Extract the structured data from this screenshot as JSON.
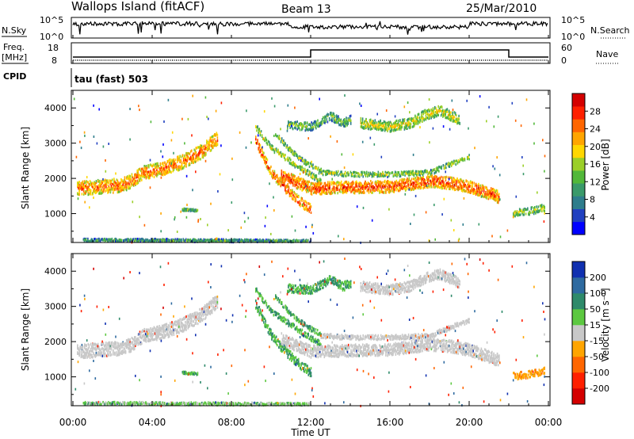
{
  "header": {
    "station": "Wallops Island (fitACF)",
    "beam": "Beam 13",
    "date": "25/Mar/2010"
  },
  "strip_panels": {
    "nsky": {
      "label": "N.Sky",
      "ticks": [
        "10^5",
        "10^0"
      ],
      "right_label": "N.Search",
      "right_ticks": [
        "10^5",
        "10^0"
      ]
    },
    "freq": {
      "label_top": "Freq.",
      "label_bottom": "[MHz]",
      "ticks": [
        "18",
        "8"
      ],
      "right_label": "Nave",
      "right_ticks": [
        "60",
        "0"
      ]
    },
    "cpid": {
      "label": "CPID",
      "value": "tau (fast) 503"
    }
  },
  "colorbars": {
    "power": {
      "label": "Power [dB]",
      "ticks": [
        "28",
        "24",
        "20",
        "16",
        "12",
        "8",
        "4"
      ],
      "colors": [
        "#0000ff",
        "#2040c0",
        "#2e7d8c",
        "#3a9a6a",
        "#52b83a",
        "#9bcf28",
        "#ffd700",
        "#ffa500",
        "#ff6600",
        "#ff2000",
        "#d40000"
      ]
    },
    "velocity": {
      "label": "Velocity [m s⁻¹]",
      "ticks": [
        "200",
        "100",
        "50",
        "15",
        "-15",
        "-50",
        "-100",
        "-200"
      ],
      "colors": [
        "#1030b0",
        "#2e6aa0",
        "#2e8a6a",
        "#5cc840",
        "#c8c8c8",
        "#ffa500",
        "#ff6600",
        "#ff2000",
        "#d40000"
      ]
    }
  },
  "chart_data": [
    {
      "type": "heatmap",
      "name": "power",
      "ylabel": "Slant Range [km]",
      "xlabel": "Time UT",
      "xlim": [
        "00:00",
        "24:00"
      ],
      "ylim": [
        180,
        4500
      ],
      "x_ticks": [
        "00:00",
        "04:00",
        "08:00",
        "12:00",
        "16:00",
        "20:00",
        "00:00"
      ],
      "y_ticks": [
        1000,
        2000,
        3000,
        4000
      ],
      "bands": [
        {
          "x": [
            0.2,
            1.5,
            2.5,
            3.0,
            3.5,
            4.5,
            5.5,
            6.5,
            7.3
          ],
          "y": [
            1750,
            1800,
            1850,
            1980,
            2200,
            2300,
            2500,
            2800,
            3200
          ],
          "width": 300,
          "level": 18
        },
        {
          "x": [
            9.2,
            10.0,
            10.8,
            11.5,
            12.0
          ],
          "y": [
            3100,
            2200,
            1700,
            1350,
            1150
          ],
          "width": 200,
          "level": 20
        },
        {
          "x": [
            9.2,
            10.0,
            11.0,
            11.8,
            12.5
          ],
          "y": [
            3500,
            2900,
            2500,
            2200,
            1950
          ],
          "width": 120,
          "level": 12
        },
        {
          "x": [
            10.2,
            11.0,
            11.8,
            12.5
          ],
          "y": [
            3300,
            2800,
            2450,
            2250
          ],
          "width": 100,
          "level": 10
        },
        {
          "x": [
            10.5,
            12.0,
            14.0,
            16.0,
            18.0,
            19.0,
            20.0,
            21.5
          ],
          "y": [
            2100,
            1750,
            1780,
            1800,
            1950,
            1900,
            1800,
            1500
          ],
          "width": 260,
          "level": 20
        },
        {
          "x": [
            12.5,
            14.0,
            16.0,
            18.0,
            20.0
          ],
          "y": [
            2200,
            2150,
            2150,
            2200,
            2650
          ],
          "width": 100,
          "level": 10
        },
        {
          "x": [
            10.8,
            12.0,
            13.0,
            13.6,
            14.0
          ],
          "y": [
            3550,
            3500,
            3800,
            3600,
            3700
          ],
          "width": 180,
          "level": 8
        },
        {
          "x": [
            14.5,
            16.0,
            17.0,
            17.8,
            18.5,
            19.5
          ],
          "y": [
            3600,
            3500,
            3600,
            3850,
            3950,
            3700
          ],
          "width": 220,
          "level": 12
        },
        {
          "x": [
            5.5,
            6.3
          ],
          "y": [
            1150,
            1120
          ],
          "width": 50,
          "level": 8
        },
        {
          "x": [
            22.2,
            23.0,
            23.8
          ],
          "y": [
            1050,
            1100,
            1200
          ],
          "width": 150,
          "level": 10
        },
        {
          "x": [
            0.5,
            3.0,
            6.0,
            9.0,
            12.0
          ],
          "y": [
            280,
            280,
            270,
            260,
            250
          ],
          "width": 60,
          "level": 6
        }
      ]
    },
    {
      "type": "heatmap",
      "name": "velocity",
      "ylabel": "Slant Range [km]",
      "xlabel": "Time UT",
      "xlim": [
        "00:00",
        "24:00"
      ],
      "ylim": [
        180,
        4500
      ],
      "x_ticks": [
        "00:00",
        "04:00",
        "08:00",
        "12:00",
        "16:00",
        "20:00",
        "00:00"
      ],
      "y_ticks": [
        1000,
        2000,
        3000,
        4000
      ],
      "bands": [
        {
          "x": [
            0.2,
            1.5,
            2.5,
            3.0,
            3.5,
            4.5,
            5.5,
            6.5,
            7.3
          ],
          "y": [
            1750,
            1800,
            1850,
            1980,
            2200,
            2300,
            2500,
            2800,
            3200
          ],
          "width": 300,
          "level": 0
        },
        {
          "x": [
            9.2,
            10.0,
            10.8,
            11.5,
            12.0
          ],
          "y": [
            3100,
            2200,
            1700,
            1350,
            1150
          ],
          "width": 200,
          "level": 30
        },
        {
          "x": [
            9.2,
            10.0,
            11.0,
            11.8,
            12.5
          ],
          "y": [
            3500,
            2900,
            2500,
            2200,
            1950
          ],
          "width": 120,
          "level": 30
        },
        {
          "x": [
            10.2,
            11.0,
            11.8,
            12.5
          ],
          "y": [
            3300,
            2800,
            2450,
            2250
          ],
          "width": 100,
          "level": 30
        },
        {
          "x": [
            10.5,
            12.0,
            14.0,
            16.0,
            18.0,
            19.0,
            20.0,
            21.5
          ],
          "y": [
            2100,
            1750,
            1780,
            1800,
            1950,
            1900,
            1800,
            1500
          ],
          "width": 260,
          "level": 0
        },
        {
          "x": [
            12.5,
            14.0,
            16.0,
            18.0,
            20.0
          ],
          "y": [
            2200,
            2150,
            2150,
            2200,
            2650
          ],
          "width": 100,
          "level": 0
        },
        {
          "x": [
            10.8,
            12.0,
            13.0,
            13.6,
            14.0
          ],
          "y": [
            3550,
            3500,
            3800,
            3600,
            3700
          ],
          "width": 180,
          "level": 30
        },
        {
          "x": [
            14.5,
            16.0,
            17.0,
            17.8,
            18.5,
            19.5
          ],
          "y": [
            3600,
            3500,
            3600,
            3850,
            3950,
            3700
          ],
          "width": 220,
          "level": 0
        },
        {
          "x": [
            5.5,
            6.3
          ],
          "y": [
            1150,
            1120
          ],
          "width": 50,
          "level": 30
        },
        {
          "x": [
            22.2,
            23.0,
            23.8
          ],
          "y": [
            1050,
            1100,
            1200
          ],
          "width": 150,
          "level": -40
        },
        {
          "x": [
            0.5,
            3.0,
            6.0,
            9.0,
            12.0
          ],
          "y": [
            280,
            280,
            270,
            260,
            250
          ],
          "width": 60,
          "level": 20
        }
      ]
    }
  ]
}
